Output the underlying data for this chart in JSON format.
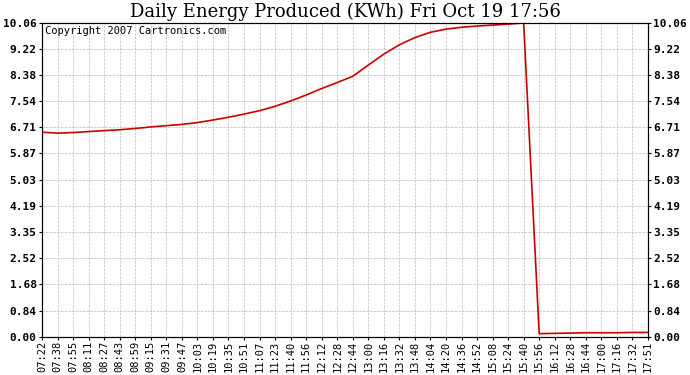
{
  "title": "Daily Energy Produced (KWh) Fri Oct 19 17:56",
  "copyright": "Copyright 2007 Cartronics.com",
  "line_color": "#cc0000",
  "background_color": "#ffffff",
  "plot_bg_color": "#ffffff",
  "grid_color": "#bbbbbb",
  "yticks": [
    0.0,
    0.84,
    1.68,
    2.52,
    3.35,
    4.19,
    5.03,
    5.87,
    6.71,
    7.54,
    8.38,
    9.22,
    10.06
  ],
  "xtick_labels": [
    "07:22",
    "07:38",
    "07:55",
    "08:11",
    "08:27",
    "08:43",
    "08:59",
    "09:15",
    "09:31",
    "09:47",
    "10:03",
    "10:19",
    "10:35",
    "10:51",
    "11:07",
    "11:23",
    "11:40",
    "11:56",
    "12:12",
    "12:28",
    "12:44",
    "13:00",
    "13:16",
    "13:32",
    "13:48",
    "14:04",
    "14:20",
    "14:36",
    "14:52",
    "15:08",
    "15:24",
    "15:40",
    "15:56",
    "16:12",
    "16:28",
    "16:44",
    "17:00",
    "17:16",
    "17:32",
    "17:51"
  ],
  "y_values": [
    6.55,
    6.52,
    6.54,
    6.57,
    6.6,
    6.63,
    6.67,
    6.72,
    6.76,
    6.8,
    6.86,
    6.94,
    7.03,
    7.13,
    7.24,
    7.38,
    7.55,
    7.74,
    7.95,
    8.14,
    8.34,
    8.7,
    9.05,
    9.35,
    9.58,
    9.75,
    9.85,
    9.91,
    9.95,
    9.98,
    10.01,
    10.05,
    0.1,
    0.11,
    0.12,
    0.13,
    0.13,
    0.13,
    0.14,
    0.14
  ],
  "ylim": [
    0.0,
    10.06
  ],
  "title_fontsize": 13,
  "copyright_fontsize": 7.5,
  "tick_fontsize": 8,
  "ytick_fontweight": "bold"
}
